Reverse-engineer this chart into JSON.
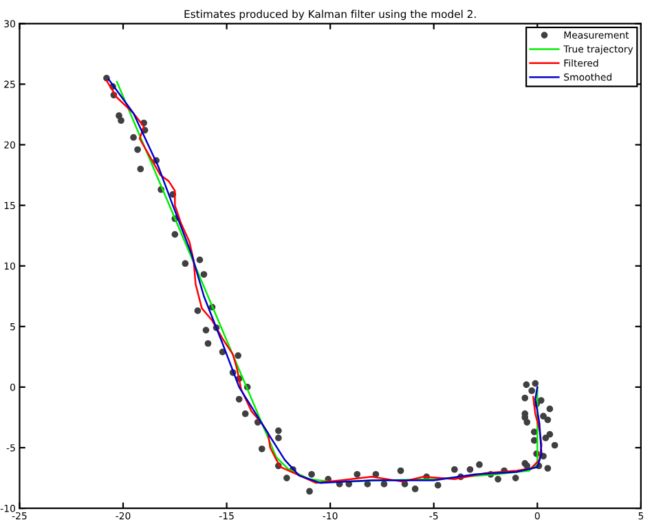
{
  "chart_data": {
    "type": "line",
    "title": "Estimates produced by Kalman filter using the model 2.",
    "xlim": [
      -25,
      5
    ],
    "ylim": [
      -10,
      30
    ],
    "xticks": [
      -25,
      -20,
      -15,
      -10,
      -5,
      0,
      5
    ],
    "yticks": [
      -10,
      -5,
      0,
      5,
      10,
      15,
      20,
      25,
      30
    ],
    "grid": false,
    "legend": "top right",
    "series": [
      {
        "name": "Measurement",
        "type": "scatter",
        "marker": "circle",
        "color": "#404040",
        "x": [
          -20.8,
          -20.5,
          -20.45,
          -20.2,
          -20.1,
          -19.0,
          -18.95,
          -19.5,
          -19.3,
          -18.4,
          -19.16,
          -18.17,
          -17.6,
          -17.5,
          -17.5,
          -17.0,
          -16.3,
          -16.1,
          -16.4,
          -15.7,
          -16.0,
          -15.9,
          -15.5,
          -15.2,
          -14.7,
          -14.45,
          -14.4,
          -14.4,
          -14.0,
          -14.1,
          -13.5,
          -13.3,
          -12.5,
          -12.5,
          -12.5,
          -12.1,
          -11.8,
          -11.0,
          -10.9,
          -10.1,
          -9.55,
          -9.1,
          -8.7,
          -8.2,
          -7.8,
          -7.4,
          -6.6,
          -6.4,
          -5.9,
          -5.35,
          -4.8,
          -4.0,
          -3.7,
          -3.25,
          -2.8,
          -2.25,
          -1.9,
          -1.6,
          -1.05,
          -0.6,
          -0.53,
          -0.27,
          -0.1,
          -0.6,
          -0.6,
          -0.6,
          -0.5,
          -0.15,
          0.29,
          0.6,
          0.5,
          0.6,
          0.4,
          0.84,
          -0.15,
          -0.04,
          0.07,
          0.29,
          0.5,
          -0.5,
          0.18,
          -0.04
        ],
        "values": [
          25.5,
          24.8,
          24.1,
          22.4,
          22.0,
          21.8,
          21.2,
          20.6,
          19.6,
          18.7,
          18.0,
          16.3,
          15.9,
          13.9,
          12.6,
          10.2,
          10.5,
          9.3,
          6.3,
          6.6,
          4.7,
          3.6,
          4.9,
          2.9,
          1.2,
          2.6,
          0.7,
          -1.0,
          0.0,
          -2.2,
          -2.9,
          -5.1,
          -3.6,
          -4.2,
          -6.5,
          -7.5,
          -6.8,
          -8.6,
          -7.2,
          -7.6,
          -8.0,
          -8.0,
          -7.2,
          -8.0,
          -7.2,
          -8.0,
          -6.9,
          -8.0,
          -8.4,
          -7.4,
          -8.1,
          -6.8,
          -7.4,
          -6.8,
          -6.4,
          -7.2,
          -7.6,
          -6.9,
          -7.5,
          -6.3,
          0.2,
          -0.3,
          0.3,
          -0.9,
          -2.2,
          -2.5,
          -2.9,
          -3.7,
          -2.4,
          -1.8,
          -2.7,
          -3.9,
          -4.2,
          -4.8,
          -4.4,
          -5.5,
          -6.5,
          -5.7,
          -6.7,
          -6.5,
          -1.1,
          -1.4
        ]
      },
      {
        "name": "True trajectory",
        "color": "#00ee00",
        "x": [
          -20.3,
          -12.6,
          -12.0,
          -11.0,
          -10.0,
          -5.0,
          -2.0,
          -0.4,
          0.0,
          0.0
        ],
        "values": [
          25.2,
          -5.8,
          -6.8,
          -7.6,
          -7.8,
          -7.6,
          -7.2,
          -6.9,
          -6.3,
          0.0
        ]
      },
      {
        "name": "Filtered",
        "color": "#ff0000",
        "x": [
          -20.8,
          -20.3,
          -19.5,
          -19.0,
          -19.2,
          -18.8,
          -18.2,
          -17.8,
          -17.5,
          -17.5,
          -17.2,
          -16.8,
          -16.6,
          -16.5,
          -16.2,
          -15.7,
          -15.2,
          -14.7,
          -14.5,
          -14.3,
          -13.8,
          -13.3,
          -13.0,
          -12.9,
          -12.6,
          -12.4,
          -11.6,
          -10.7,
          -9.5,
          -8.0,
          -6.5,
          -5.5,
          -4.0,
          -2.5,
          -1.0,
          -0.3,
          0.1,
          0.2,
          0.1,
          -0.1,
          -0.2
        ],
        "values": [
          25.3,
          23.9,
          22.6,
          21.5,
          20.5,
          19.3,
          17.5,
          17.0,
          16.2,
          15.0,
          13.5,
          12.0,
          10.5,
          8.5,
          6.5,
          5.5,
          4.0,
          2.7,
          1.5,
          -0.2,
          -2.0,
          -3.0,
          -3.8,
          -5.0,
          -6.0,
          -6.6,
          -7.2,
          -7.9,
          -7.7,
          -7.4,
          -7.8,
          -7.4,
          -7.6,
          -7.1,
          -6.9,
          -6.7,
          -6.0,
          -4.8,
          -3.5,
          -2.2,
          -0.8
        ]
      },
      {
        "name": "Smoothed",
        "color": "#0000cc",
        "x": [
          -20.7,
          -19.5,
          -18.3,
          -17.6,
          -16.7,
          -16.1,
          -15.2,
          -14.4,
          -13.3,
          -12.2,
          -11.5,
          -10.5,
          -8.0,
          -5.0,
          -3.0,
          -1.0,
          0.0,
          0.2,
          0.1,
          -0.1,
          0.0
        ],
        "values": [
          25.4,
          22.6,
          18.2,
          15.0,
          11.0,
          7.5,
          3.6,
          0.0,
          -3.0,
          -6.0,
          -7.3,
          -7.9,
          -7.7,
          -7.7,
          -7.2,
          -7.0,
          -6.6,
          -5.5,
          -3.0,
          -1.0,
          0.0
        ]
      }
    ]
  }
}
